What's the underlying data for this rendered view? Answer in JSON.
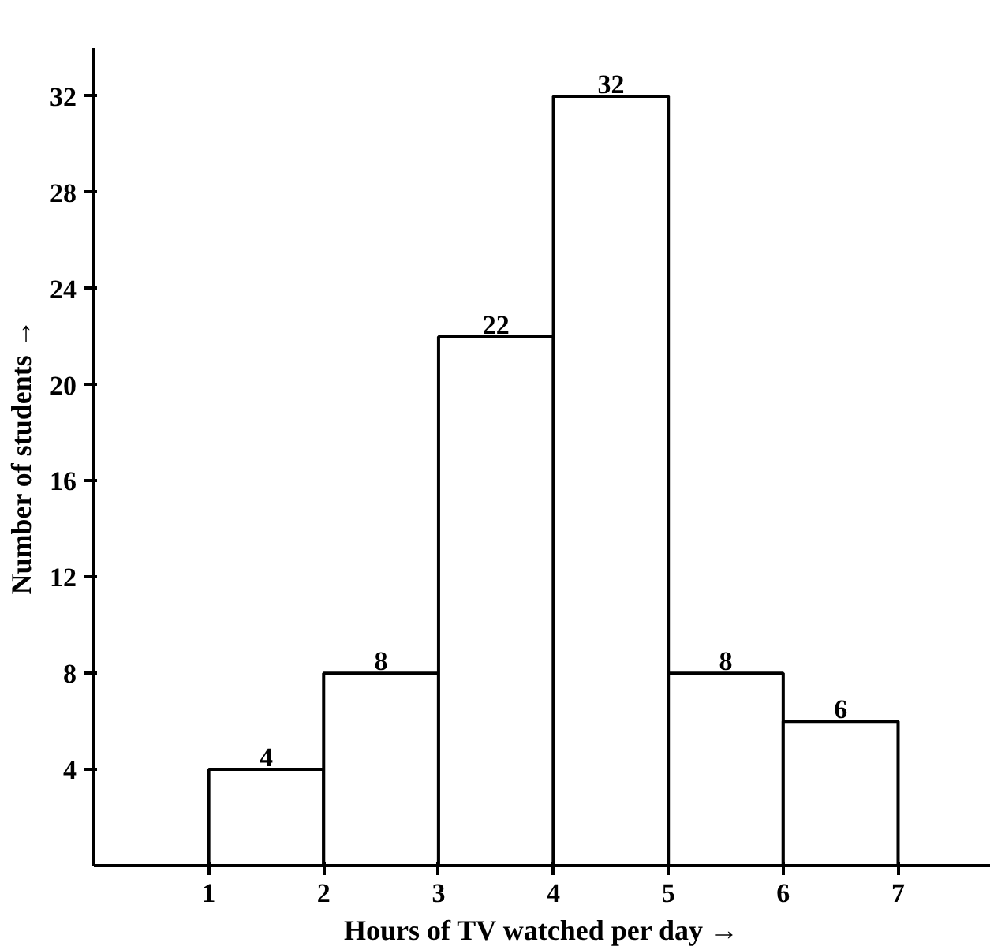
{
  "chart_data": {
    "type": "histogram",
    "xlabel": "Hours of TV watched per day →",
    "ylabel": "Number of students →",
    "bins": [
      1,
      2,
      3,
      4,
      5,
      6,
      7
    ],
    "values": [
      4,
      8,
      22,
      32,
      8,
      6
    ],
    "color": "#ffffff",
    "data_labels": true,
    "xlim": [
      0,
      7.8
    ],
    "ylim": [
      0,
      34
    ],
    "xticks": [
      1,
      2,
      3,
      4,
      5,
      6,
      7
    ],
    "yticks": [
      4,
      8,
      12,
      16,
      20,
      24,
      28,
      32
    ],
    "grid": false
  }
}
